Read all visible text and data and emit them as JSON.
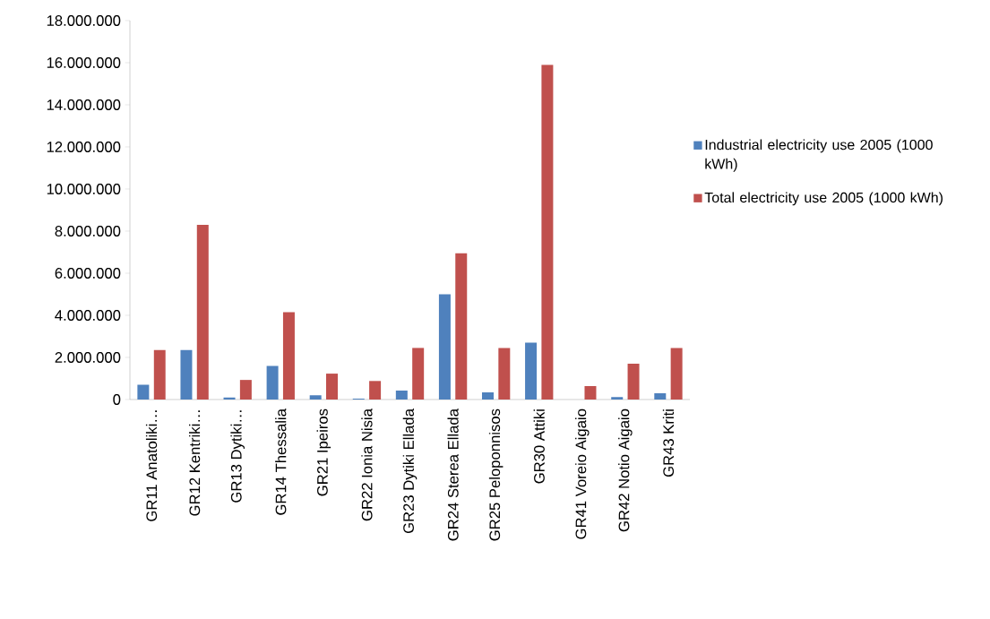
{
  "chart_data": {
    "type": "bar",
    "categories": [
      "GR11 Anatoliki…",
      "GR12 Kentriki…",
      "GR13 Dytiki…",
      "GR14 Thessalia",
      "GR21 Ipeiros",
      "GR22 Ionia Nisia",
      "GR23 Dytiki Ellada",
      "GR24 Sterea Ellada",
      "GR25 Peloponnisos",
      "GR30 Attiki",
      "GR41 Voreio Aigaio",
      "GR42 Notio Aigaio",
      "GR43 Kriti"
    ],
    "series": [
      {
        "name": "Industrial electricity use 2005 (1000 kWh)",
        "color": "#4f81bd",
        "values": [
          700000,
          2350000,
          100000,
          1600000,
          200000,
          40000,
          430000,
          5000000,
          340000,
          2700000,
          null,
          120000,
          300000
        ]
      },
      {
        "name": "Total electricity use  2005 (1000 kWh)",
        "color": "#c0504d",
        "values": [
          2350000,
          8300000,
          930000,
          4150000,
          1230000,
          880000,
          2450000,
          6950000,
          2450000,
          15900000,
          640000,
          1700000,
          2450000
        ]
      }
    ],
    "ylim": [
      0,
      18000000
    ],
    "yticks": [
      0,
      {
        "value": 2000000,
        "label": "2.000.000"
      },
      {
        "value": 4000000,
        "label": "4.000.000"
      },
      {
        "value": 6000000,
        "label": "6.000.000"
      },
      {
        "value": 8000000,
        "label": "8.000.000"
      },
      {
        "value": 10000000,
        "label": "10.000.000"
      },
      {
        "value": 12000000,
        "label": "12.000.000"
      },
      {
        "value": 14000000,
        "label": "14.000.000"
      },
      {
        "value": 16000000,
        "label": "16.000.000"
      },
      {
        "value": 18000000,
        "label": "18.000.000"
      }
    ],
    "legend": "right"
  }
}
